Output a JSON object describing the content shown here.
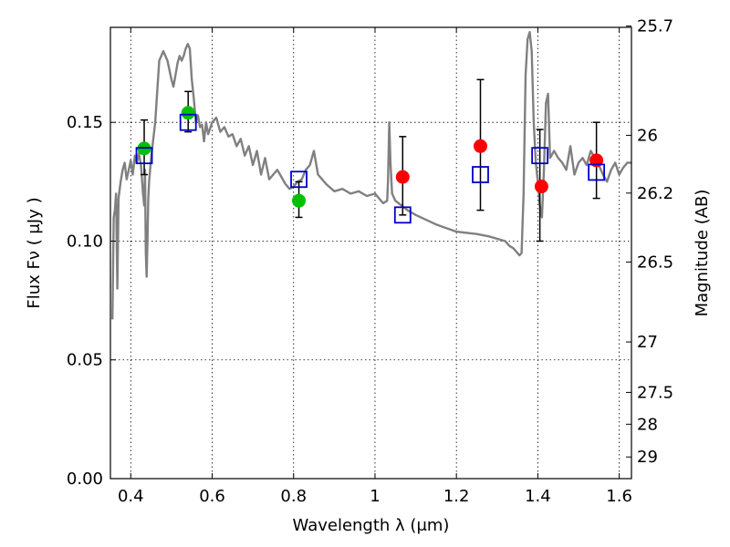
{
  "chart_data": {
    "type": "scatter",
    "xlabel": "Wavelength  λ (μm)",
    "ylabel": "Flux  Fν  ( μJy )",
    "ylabel_right": "Magnitude (AB)",
    "xlim": [
      0.35,
      1.63
    ],
    "ylim": [
      0.0,
      0.19
    ],
    "grid": true,
    "x_ticks": [
      "0.4",
      "0.6",
      "0.8",
      "1",
      "1.2",
      "1.4",
      "1.6"
    ],
    "x_tick_values": [
      0.4,
      0.6,
      0.8,
      1.0,
      1.2,
      1.4,
      1.6
    ],
    "y_ticks": [
      "0.00",
      "0.05",
      "0.10",
      "0.15"
    ],
    "y_tick_values": [
      0.0,
      0.05,
      0.1,
      0.15
    ],
    "right_ticks": [
      {
        "label": "25.7",
        "mag": 25.7
      },
      {
        "label": "26",
        "mag": 26.0
      },
      {
        "label": "26.2",
        "mag": 26.2
      },
      {
        "label": "26.5",
        "mag": 26.5
      },
      {
        "label": "27",
        "mag": 27.0
      },
      {
        "label": "27.5",
        "mag": 27.5
      },
      {
        "label": "28",
        "mag": 28.0
      },
      {
        "label": "29",
        "mag": 29.0
      }
    ],
    "colors": {
      "model": "#808080",
      "green": "#00c000",
      "red": "#ff0000",
      "square": "#0000cc",
      "errorbar": "#000000"
    },
    "model_spectrum": {
      "x": [
        0.355,
        0.358,
        0.361,
        0.364,
        0.367,
        0.37,
        0.375,
        0.38,
        0.385,
        0.39,
        0.395,
        0.4,
        0.405,
        0.41,
        0.415,
        0.42,
        0.425,
        0.43,
        0.433,
        0.435,
        0.437,
        0.439,
        0.441,
        0.443,
        0.445,
        0.45,
        0.46,
        0.47,
        0.48,
        0.49,
        0.5,
        0.505,
        0.51,
        0.515,
        0.52,
        0.525,
        0.53,
        0.535,
        0.54,
        0.545,
        0.55,
        0.555,
        0.56,
        0.565,
        0.57,
        0.575,
        0.58,
        0.585,
        0.59,
        0.6,
        0.61,
        0.62,
        0.63,
        0.64,
        0.65,
        0.66,
        0.67,
        0.68,
        0.69,
        0.7,
        0.71,
        0.72,
        0.73,
        0.74,
        0.75,
        0.76,
        0.77,
        0.78,
        0.79,
        0.8,
        0.81,
        0.82,
        0.83,
        0.84,
        0.85,
        0.86,
        0.87,
        0.88,
        0.9,
        0.92,
        0.94,
        0.96,
        0.98,
        1.0,
        1.01,
        1.02,
        1.03,
        1.032,
        1.035,
        1.038,
        1.042,
        1.05,
        1.08,
        1.1,
        1.15,
        1.2,
        1.25,
        1.28,
        1.3,
        1.32,
        1.33,
        1.34,
        1.345,
        1.35,
        1.355,
        1.36,
        1.365,
        1.37,
        1.375,
        1.38,
        1.385,
        1.39,
        1.395,
        1.4,
        1.405,
        1.41,
        1.415,
        1.42,
        1.425,
        1.43,
        1.44,
        1.45,
        1.46,
        1.47,
        1.48,
        1.49,
        1.5,
        1.51,
        1.52,
        1.53,
        1.54,
        1.55,
        1.56,
        1.57,
        1.58,
        1.59,
        1.6,
        1.61,
        1.62,
        1.63
      ],
      "y": [
        0.067,
        0.11,
        0.113,
        0.12,
        0.08,
        0.118,
        0.125,
        0.13,
        0.133,
        0.126,
        0.13,
        0.134,
        0.128,
        0.136,
        0.133,
        0.137,
        0.132,
        0.12,
        0.115,
        0.13,
        0.095,
        0.085,
        0.1,
        0.118,
        0.125,
        0.135,
        0.15,
        0.176,
        0.18,
        0.176,
        0.168,
        0.165,
        0.17,
        0.175,
        0.178,
        0.176,
        0.178,
        0.181,
        0.183,
        0.181,
        0.168,
        0.16,
        0.15,
        0.153,
        0.148,
        0.149,
        0.142,
        0.15,
        0.145,
        0.15,
        0.152,
        0.146,
        0.148,
        0.144,
        0.145,
        0.14,
        0.143,
        0.136,
        0.14,
        0.132,
        0.138,
        0.128,
        0.135,
        0.126,
        0.128,
        0.13,
        0.127,
        0.124,
        0.122,
        0.123,
        0.125,
        0.126,
        0.13,
        0.132,
        0.138,
        0.128,
        0.126,
        0.124,
        0.121,
        0.122,
        0.12,
        0.121,
        0.119,
        0.12,
        0.118,
        0.116,
        0.117,
        0.125,
        0.15,
        0.133,
        0.12,
        0.117,
        0.113,
        0.111,
        0.107,
        0.104,
        0.103,
        0.102,
        0.101,
        0.1,
        0.098,
        0.097,
        0.096,
        0.095,
        0.094,
        0.095,
        0.12,
        0.17,
        0.185,
        0.188,
        0.18,
        0.15,
        0.133,
        0.125,
        0.115,
        0.11,
        0.13,
        0.158,
        0.162,
        0.135,
        0.138,
        0.135,
        0.133,
        0.13,
        0.14,
        0.128,
        0.133,
        0.135,
        0.132,
        0.138,
        0.135,
        0.132,
        0.128,
        0.125,
        0.13,
        0.133,
        0.128,
        0.131,
        0.133,
        0.133
      ]
    },
    "series": [
      {
        "marker": "circle-green",
        "points": [
          {
            "x": 0.433,
            "y": 0.139
          },
          {
            "x": 0.541,
            "y": 0.154
          },
          {
            "x": 0.813,
            "y": 0.117
          }
        ]
      },
      {
        "marker": "circle-red",
        "points": [
          {
            "x": 1.068,
            "y": 0.127
          },
          {
            "x": 1.259,
            "y": 0.14
          },
          {
            "x": 1.409,
            "y": 0.123
          },
          {
            "x": 1.544,
            "y": 0.134
          }
        ]
      },
      {
        "marker": "square-open-blue",
        "points": [
          {
            "x": 0.433,
            "y": 0.136
          },
          {
            "x": 0.541,
            "y": 0.15
          },
          {
            "x": 0.813,
            "y": 0.126
          },
          {
            "x": 1.068,
            "y": 0.111
          },
          {
            "x": 1.259,
            "y": 0.128
          },
          {
            "x": 1.405,
            "y": 0.136
          },
          {
            "x": 1.544,
            "y": 0.129
          }
        ]
      }
    ],
    "errorbars": [
      {
        "x": 0.433,
        "low": 0.128,
        "high": 0.151
      },
      {
        "x": 0.541,
        "low": 0.146,
        "high": 0.163
      },
      {
        "x": 0.813,
        "low": 0.11,
        "high": 0.125
      },
      {
        "x": 1.068,
        "low": 0.111,
        "high": 0.144
      },
      {
        "x": 1.259,
        "low": 0.113,
        "high": 0.168
      },
      {
        "x": 1.405,
        "low": 0.1,
        "high": 0.147
      },
      {
        "x": 1.544,
        "low": 0.118,
        "high": 0.15
      }
    ]
  }
}
